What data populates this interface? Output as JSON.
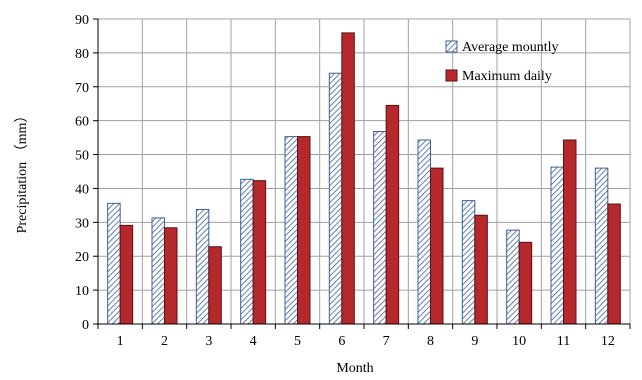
{
  "chart_data": {
    "type": "bar",
    "title": "",
    "xlabel": "Month",
    "ylabel": "Precipitation （mm）",
    "ylim": [
      0,
      90
    ],
    "ytick_step": 10,
    "grid": "both",
    "legend_position": "top-right",
    "categories": [
      "1",
      "2",
      "3",
      "4",
      "5",
      "6",
      "7",
      "8",
      "9",
      "10",
      "11",
      "12"
    ],
    "series": [
      {
        "name": "Average mountly",
        "pattern": "diagonal-hatch",
        "color": "#3a5f9a",
        "fill": "#ffffff",
        "values": [
          35.6,
          31.3,
          33.8,
          42.7,
          55.3,
          74.0,
          56.8,
          54.3,
          36.4,
          27.7,
          46.3,
          46.0
        ]
      },
      {
        "name": "Maximum daily",
        "color": "#b5282c",
        "values": [
          29.1,
          28.4,
          22.8,
          42.3,
          55.3,
          85.9,
          64.5,
          46.0,
          32.1,
          24.1,
          54.3,
          35.4
        ]
      }
    ]
  }
}
